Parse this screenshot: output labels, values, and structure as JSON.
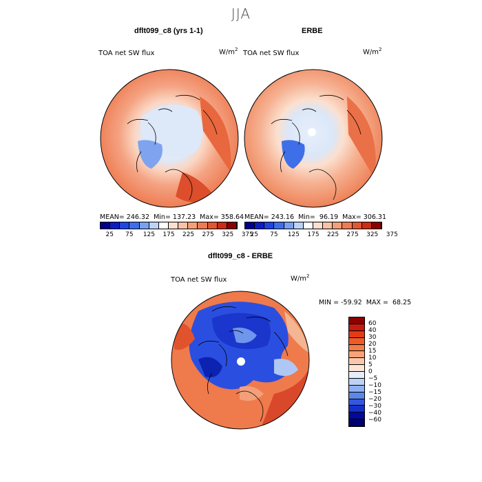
{
  "figure": {
    "season": "JJA"
  },
  "panel_left": {
    "title": "dflt099_c8 (yrs 1-1)",
    "variable": "TOA net SW flux",
    "unit": "W/m",
    "unit_exp": "2",
    "stats": "MEAN= 246.32  Min= 137.23  Max= 358.64"
  },
  "panel_right": {
    "title": "ERBE",
    "variable": "TOA net SW flux",
    "unit": "W/m",
    "unit_exp": "2",
    "stats": "MEAN= 243.16  Min=  96.19  Max= 306.31"
  },
  "panel_diff": {
    "title": "dflt099_c8 - ERBE",
    "variable": "TOA net SW flux",
    "unit": "W/m",
    "unit_exp": "2",
    "stats": "MIN = -59.92  MAX =  68.25"
  },
  "colorbar_top": {
    "colors": [
      "#00008b",
      "#0a1fc2",
      "#1f45e0",
      "#3f6fe8",
      "#7aa1ef",
      "#bcd3f6",
      "#ffffff",
      "#fbe0cf",
      "#f8c3a5",
      "#f3a07a",
      "#ee7b53",
      "#e45532",
      "#cc2b18",
      "#8b0000"
    ],
    "tick_labels": [
      "25",
      "75",
      "125",
      "175",
      "225",
      "275",
      "325",
      "375"
    ]
  },
  "colorbar_diff": {
    "colors_top_to_bottom": [
      "#8b0000",
      "#c51b0f",
      "#e23b16",
      "#ef5a26",
      "#f57d45",
      "#f8a277",
      "#fbc7aa",
      "#fde6d8",
      "#e6eefb",
      "#bcd2f6",
      "#8eb0f0",
      "#5d86ea",
      "#3457e2",
      "#1530c8",
      "#000a9e",
      "#000070"
    ],
    "tick_labels": [
      "60",
      "40",
      "30",
      "20",
      "15",
      "10",
      "5",
      "0",
      "−5",
      "−10",
      "−15",
      "−20",
      "−30",
      "−40",
      "−60"
    ]
  }
}
